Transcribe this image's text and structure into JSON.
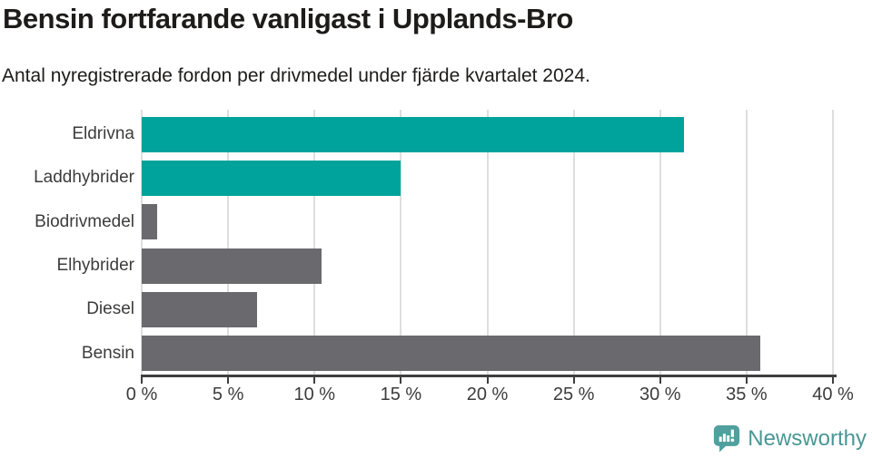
{
  "header": {
    "title": "Bensin fortfarande vanligast i Upplands-Bro",
    "subtitle": "Antal nyregistrerade fordon per drivmedel under fjärde kvartalet 2024."
  },
  "chart_data": {
    "type": "bar",
    "orientation": "horizontal",
    "title": "Bensin fortfarande vanligast i Upplands-Bro",
    "subtitle": "Antal nyregistrerade fordon per drivmedel under fjärde kvartalet 2024.",
    "categories": [
      "Eldrivna",
      "Laddhybrider",
      "Biodrivmedel",
      "Elhybrider",
      "Diesel",
      "Bensin"
    ],
    "values": [
      31.4,
      15.0,
      0.9,
      10.4,
      6.7,
      35.8
    ],
    "unit": "%",
    "xlim": [
      0,
      40
    ],
    "xticks": [
      0,
      5,
      10,
      15,
      20,
      25,
      30,
      35,
      40
    ],
    "xtick_labels": [
      "0 %",
      "5 %",
      "10 %",
      "15 %",
      "20 %",
      "25 %",
      "30 %",
      "35 %",
      "40 %"
    ],
    "grid": true,
    "legend": "none",
    "bar_colors": [
      "#00a39b",
      "#00a39b",
      "#6a6a6e",
      "#6a6a6e",
      "#6a6a6e",
      "#6a6a6e"
    ],
    "accent_colors": {
      "teal": "#00a39b",
      "gray": "#6a6a6e"
    }
  },
  "footer": {
    "brand": "Newsworthy",
    "brand_color": "#4a9795",
    "icon": "newsworthy-speech-bubble-bar-chart-icon",
    "icon_color": "#4fa09e"
  }
}
